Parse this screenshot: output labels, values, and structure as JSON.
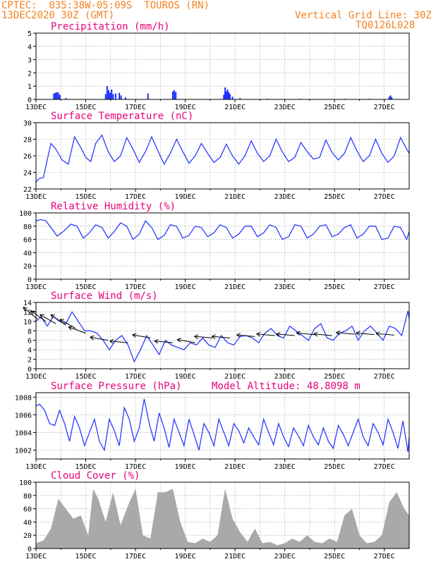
{
  "header": {
    "line1": "CPTEC:  035:38W-05:09S  TOUROS (RN)",
    "line2": "13DEC2020 30Z (GMT)",
    "right1": "Vertical Grid Line: 30Z",
    "right2": "TQ0126L028"
  },
  "x_ticks": [
    "13DEC",
    "15DEC",
    "17DEC",
    "19DEC",
    "21DEC",
    "23DEC",
    "25DEC",
    "27DEC"
  ],
  "colors": {
    "line": "#2a3cff",
    "bar": "#1e2eff",
    "cloud": "#a9a9a9",
    "title": "#e8007a",
    "header": "#f58220"
  },
  "chart_data": [
    {
      "id": "precip",
      "type": "bar",
      "title": "Precipitation (mm/h)",
      "ylim": [
        0,
        5
      ],
      "yticks": [
        0,
        1,
        2,
        3,
        4,
        5
      ],
      "xlim": [
        13,
        28
      ],
      "x": [
        13.72,
        13.78,
        13.84,
        13.9,
        13.96,
        14.2,
        15.8,
        15.86,
        15.92,
        15.98,
        16.04,
        16.1,
        16.2,
        16.35,
        16.42,
        16.6,
        17.5,
        18.5,
        18.56,
        18.62,
        20.55,
        20.6,
        20.65,
        20.7,
        20.75,
        20.8,
        20.9,
        21.2,
        22.3,
        23.6,
        25.4,
        26.4,
        27.2,
        27.25,
        27.3
      ],
      "values": [
        0.45,
        0.5,
        0.55,
        0.5,
        0.35,
        0.1,
        0.4,
        1.0,
        0.7,
        0.5,
        0.75,
        0.4,
        0.45,
        0.5,
        0.3,
        0.15,
        0.45,
        0.6,
        0.7,
        0.55,
        0.35,
        0.9,
        0.6,
        0.75,
        0.55,
        0.4,
        0.2,
        0.1,
        0.05,
        0.05,
        0.05,
        0.05,
        0.2,
        0.3,
        0.15
      ]
    },
    {
      "id": "temp",
      "type": "line",
      "title": "Surface Temperature (nC)",
      "ylim": [
        22,
        30
      ],
      "yticks": [
        22,
        24,
        26,
        28,
        30
      ],
      "xlim": [
        13,
        28
      ],
      "x": [
        13,
        13.1,
        13.3,
        13.45,
        13.6,
        13.8,
        14.05,
        14.3,
        14.55,
        14.8,
        15.0,
        15.2,
        15.4,
        15.65,
        15.9,
        16.15,
        16.4,
        16.65,
        16.9,
        17.15,
        17.4,
        17.65,
        17.9,
        18.15,
        18.4,
        18.65,
        18.9,
        19.15,
        19.4,
        19.65,
        19.9,
        20.15,
        20.4,
        20.65,
        20.9,
        21.15,
        21.4,
        21.65,
        21.9,
        22.15,
        22.4,
        22.65,
        22.9,
        23.15,
        23.4,
        23.65,
        23.9,
        24.15,
        24.4,
        24.65,
        24.9,
        25.15,
        25.4,
        25.65,
        25.9,
        26.15,
        26.4,
        26.65,
        26.9,
        27.15,
        27.4,
        27.65,
        27.9,
        28.0
      ],
      "values": [
        22.8,
        23.2,
        23.4,
        25.5,
        27.5,
        26.8,
        25.5,
        25.0,
        28.3,
        27.0,
        25.8,
        25.3,
        27.5,
        28.5,
        26.5,
        25.3,
        26.0,
        28.2,
        26.8,
        25.2,
        26.5,
        28.3,
        26.6,
        25.0,
        26.3,
        28.0,
        26.5,
        25.1,
        26.0,
        27.5,
        26.3,
        25.2,
        25.8,
        27.4,
        26.0,
        25.0,
        26.0,
        27.8,
        26.3,
        25.3,
        26.0,
        28.0,
        26.5,
        25.3,
        25.8,
        27.6,
        26.5,
        25.6,
        25.8,
        27.9,
        26.4,
        25.5,
        26.3,
        28.2,
        26.6,
        25.3,
        26.0,
        28.0,
        26.3,
        25.2,
        26.0,
        28.2,
        26.8,
        26.3
      ]
    },
    {
      "id": "rh",
      "type": "line",
      "title": "Relative Humidity (%)",
      "ylim": [
        0,
        100
      ],
      "yticks": [
        0,
        20,
        40,
        60,
        80,
        100
      ],
      "xlim": [
        13,
        28
      ],
      "x": [
        13,
        13.2,
        13.4,
        13.6,
        13.85,
        14.1,
        14.4,
        14.65,
        14.9,
        15.15,
        15.4,
        15.65,
        15.9,
        16.15,
        16.4,
        16.65,
        16.9,
        17.15,
        17.4,
        17.65,
        17.9,
        18.15,
        18.4,
        18.65,
        18.9,
        19.15,
        19.4,
        19.65,
        19.9,
        20.15,
        20.4,
        20.65,
        20.9,
        21.15,
        21.4,
        21.65,
        21.9,
        22.15,
        22.4,
        22.65,
        22.9,
        23.15,
        23.4,
        23.65,
        23.9,
        24.15,
        24.4,
        24.65,
        24.9,
        25.15,
        25.4,
        25.65,
        25.9,
        26.15,
        26.4,
        26.65,
        26.9,
        27.15,
        27.4,
        27.65,
        27.9,
        28.0
      ],
      "values": [
        88,
        90,
        88,
        78,
        65,
        72,
        83,
        80,
        62,
        70,
        82,
        78,
        62,
        72,
        85,
        80,
        60,
        68,
        88,
        78,
        60,
        66,
        82,
        80,
        62,
        66,
        80,
        78,
        64,
        70,
        82,
        78,
        62,
        68,
        80,
        80,
        64,
        70,
        82,
        78,
        60,
        64,
        82,
        80,
        62,
        68,
        80,
        82,
        64,
        68,
        78,
        82,
        62,
        68,
        80,
        80,
        60,
        62,
        80,
        78,
        60,
        72
      ]
    },
    {
      "id": "wind",
      "type": "line",
      "title": "Surface Wind (m/s)",
      "ylim": [
        0,
        14
      ],
      "yticks": [
        0,
        2,
        4,
        6,
        8,
        10,
        12,
        14
      ],
      "xlim": [
        13,
        28
      ],
      "x": [
        13,
        13.2,
        13.45,
        13.7,
        13.95,
        14.2,
        14.45,
        14.7,
        14.95,
        15.2,
        15.45,
        15.7,
        15.95,
        16.2,
        16.45,
        16.7,
        16.95,
        17.2,
        17.45,
        17.7,
        17.95,
        18.2,
        18.45,
        18.7,
        18.95,
        19.2,
        19.45,
        19.7,
        19.95,
        20.2,
        20.45,
        20.7,
        20.95,
        21.2,
        21.45,
        21.7,
        21.95,
        22.2,
        22.45,
        22.7,
        22.95,
        23.2,
        23.45,
        23.7,
        23.95,
        24.2,
        24.45,
        24.7,
        24.95,
        25.2,
        25.45,
        25.7,
        25.95,
        26.2,
        26.45,
        26.7,
        26.95,
        27.2,
        27.45,
        27.7,
        27.95,
        28.0
      ],
      "values": [
        10,
        11,
        9,
        11,
        10,
        9.5,
        12,
        10,
        8,
        8,
        7.5,
        6,
        4,
        6,
        7,
        5,
        1.5,
        4,
        7,
        5,
        3,
        6,
        5,
        4.5,
        4,
        5.5,
        5,
        6.5,
        5,
        4.5,
        7,
        5.5,
        5,
        6.8,
        7,
        6.5,
        5.5,
        7.5,
        8.5,
        7,
        6.5,
        9,
        8,
        7,
        6,
        8.5,
        9.5,
        6.5,
        6,
        7.5,
        8,
        9,
        6,
        8,
        9,
        7.5,
        6,
        9,
        8.5,
        7,
        12.2,
        10.5
      ],
      "vectors_x": [
        13.05,
        13.4,
        13.8,
        14.2,
        14.6,
        15.0,
        15.9,
        16.7,
        17.6,
        18.5,
        19.4,
        20.1,
        20.8,
        21.8,
        22.6,
        23.4,
        24.2,
        24.9,
        25.8,
        26.6,
        27.4
      ],
      "vectors_speed": [
        10.5,
        10,
        9.5,
        9.2,
        8.5,
        7.5,
        6,
        5.5,
        6.5,
        5.5,
        5.5,
        6.5,
        6.5,
        6.8,
        7,
        7,
        7.2,
        7,
        7.3,
        7.2,
        7.1
      ],
      "vectors_from_dir": [
        130,
        125,
        120,
        125,
        120,
        110,
        100,
        95,
        100,
        95,
        100,
        95,
        95,
        95,
        95,
        95,
        95,
        95,
        95,
        95,
        95
      ]
    },
    {
      "id": "pressure",
      "type": "line",
      "title": "Surface Pressure (hPa)",
      "subtitle": "Model Altitude: 48.8098 m",
      "ylim": [
        1001,
        1008.5
      ],
      "yticks": [
        1002,
        1004,
        1006,
        1008
      ],
      "xlim": [
        13,
        28
      ],
      "x": [
        13,
        13.15,
        13.35,
        13.55,
        13.75,
        13.95,
        14.15,
        14.35,
        14.55,
        14.75,
        14.95,
        15.15,
        15.35,
        15.55,
        15.75,
        15.95,
        16.15,
        16.35,
        16.55,
        16.75,
        16.95,
        17.15,
        17.35,
        17.55,
        17.75,
        17.95,
        18.15,
        18.35,
        18.55,
        18.75,
        18.95,
        19.15,
        19.35,
        19.55,
        19.75,
        19.95,
        20.15,
        20.35,
        20.55,
        20.75,
        20.95,
        21.15,
        21.35,
        21.55,
        21.75,
        21.95,
        22.15,
        22.35,
        22.55,
        22.75,
        22.95,
        23.15,
        23.35,
        23.55,
        23.75,
        23.95,
        24.15,
        24.35,
        24.55,
        24.75,
        24.95,
        25.15,
        25.35,
        25.55,
        25.75,
        25.95,
        26.15,
        26.35,
        26.55,
        26.75,
        26.95,
        27.15,
        27.35,
        27.55,
        27.75,
        27.95,
        28.0
      ],
      "values": [
        1007.0,
        1007.2,
        1006.5,
        1005.0,
        1004.8,
        1006.5,
        1005.0,
        1003.0,
        1005.8,
        1004.5,
        1002.5,
        1004.0,
        1005.5,
        1003.0,
        1002.0,
        1005.5,
        1004.2,
        1002.5,
        1006.8,
        1005.5,
        1003.0,
        1004.5,
        1007.8,
        1005.0,
        1003.0,
        1006.2,
        1004.5,
        1002.3,
        1005.5,
        1004.0,
        1002.5,
        1005.5,
        1003.8,
        1002.0,
        1005.0,
        1004.0,
        1002.5,
        1005.5,
        1004.0,
        1002.5,
        1005.0,
        1004.2,
        1002.8,
        1004.5,
        1003.5,
        1002.6,
        1005.5,
        1004.0,
        1002.6,
        1005.0,
        1003.5,
        1002.4,
        1004.5,
        1003.6,
        1002.5,
        1004.8,
        1003.5,
        1002.6,
        1004.5,
        1003.0,
        1002.2,
        1004.8,
        1003.8,
        1002.5,
        1004.0,
        1005.5,
        1003.5,
        1002.5,
        1005.0,
        1004.0,
        1002.6,
        1005.5,
        1004.0,
        1002.2,
        1005.3,
        1001.8,
        1003.5
      ]
    },
    {
      "id": "cloud",
      "type": "area",
      "title": "Cloud Cover (%)",
      "ylim": [
        0,
        100
      ],
      "yticks": [
        0,
        20,
        40,
        60,
        80,
        100
      ],
      "xlim": [
        13,
        28
      ],
      "x": [
        13,
        13.3,
        13.6,
        13.9,
        14.2,
        14.5,
        14.8,
        15.1,
        15.3,
        15.5,
        15.8,
        16.1,
        16.4,
        16.7,
        17.0,
        17.3,
        17.6,
        17.9,
        18.2,
        18.5,
        18.8,
        19.1,
        19.4,
        19.7,
        20.0,
        20.3,
        20.6,
        20.9,
        21.2,
        21.5,
        21.8,
        22.1,
        22.4,
        22.7,
        23.0,
        23.3,
        23.6,
        23.9,
        24.2,
        24.5,
        24.8,
        25.1,
        25.4,
        25.7,
        26.0,
        26.3,
        26.6,
        26.9,
        27.2,
        27.5,
        27.8,
        28.0
      ],
      "values": [
        8,
        12,
        30,
        75,
        60,
        45,
        50,
        20,
        90,
        75,
        40,
        85,
        35,
        65,
        90,
        20,
        15,
        85,
        85,
        90,
        40,
        10,
        8,
        15,
        10,
        20,
        90,
        45,
        25,
        10,
        30,
        8,
        10,
        5,
        8,
        15,
        10,
        20,
        10,
        8,
        15,
        10,
        50,
        60,
        20,
        8,
        10,
        20,
        70,
        85,
        60,
        50
      ]
    }
  ]
}
